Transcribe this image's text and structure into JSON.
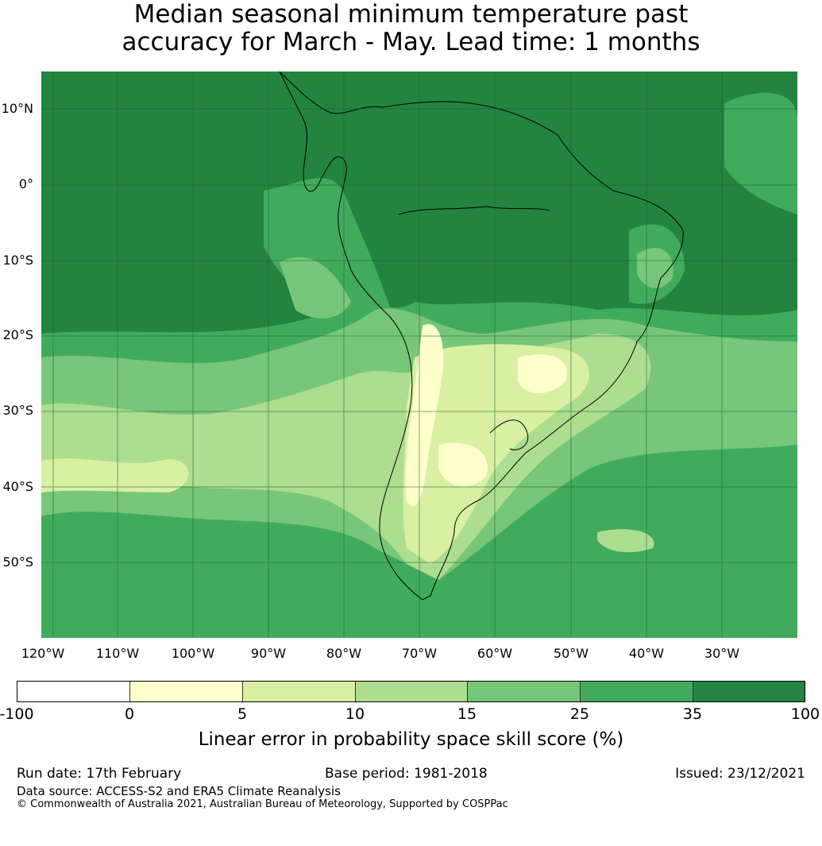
{
  "title": {
    "line1": "Median seasonal minimum temperature past",
    "line2": "accuracy for March - May. Lead time: 1 months"
  },
  "map": {
    "lat_labels": [
      "10°N",
      "0°",
      "10°S",
      "20°S",
      "30°S",
      "40°S",
      "50°S"
    ],
    "lon_labels": [
      "120°W",
      "110°W",
      "100°W",
      "90°W",
      "80°W",
      "70°W",
      "60°W",
      "50°W",
      "40°W",
      "30°W"
    ]
  },
  "colorbar": {
    "ticks": [
      "-100",
      "0",
      "5",
      "10",
      "15",
      "25",
      "35",
      "100"
    ],
    "colors": [
      "#ffffff",
      "#ffffcc",
      "#d9f0a3",
      "#addd8e",
      "#78c679",
      "#41ab5d",
      "#238443"
    ],
    "label": "Linear error in probability space skill score (%)"
  },
  "footer": {
    "run_date": "Run date: 17th February",
    "base_period": "Base period: 1981-2018",
    "issued": "Issued: 23/12/2021",
    "data_source": "Data source: ACCESS-S2 and ERA5 Climate Reanalysis",
    "copyright": "© Commonwealth of Australia 2021, Australian Bureau of Meteorology, Supported by COSPPac"
  }
}
